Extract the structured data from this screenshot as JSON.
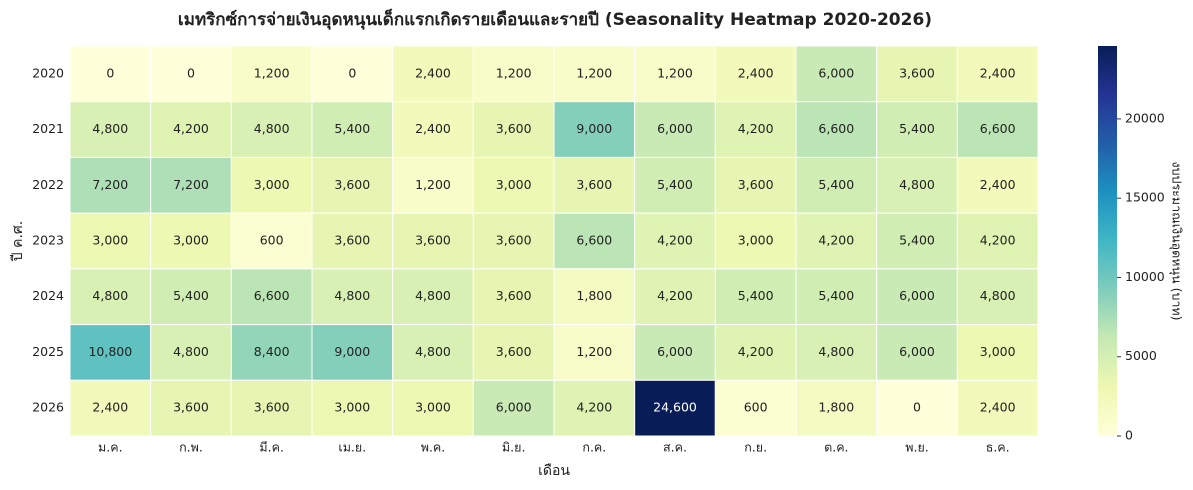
{
  "chart_data": {
    "type": "heatmap",
    "title": "เมทริกซ์การจ่ายเงินอุดหนุนเด็กแรกเกิดรายเดือนและรายปี (Seasonality Heatmap 2020-2026)",
    "x_label": "เดือน",
    "y_label": "ปี ค.ศ.",
    "x": [
      "ม.ค.",
      "ก.พ.",
      "มี.ค.",
      "เม.ย.",
      "พ.ค.",
      "มิ.ย.",
      "ก.ค.",
      "ส.ค.",
      "ก.ย.",
      "ต.ค.",
      "พ.ย.",
      "ธ.ค."
    ],
    "y": [
      "2020",
      "2021",
      "2022",
      "2023",
      "2024",
      "2025",
      "2026"
    ],
    "values": [
      [
        0,
        0,
        1200,
        0,
        2400,
        1200,
        1200,
        1200,
        2400,
        6000,
        3600,
        2400
      ],
      [
        4800,
        4200,
        4800,
        5400,
        2400,
        3600,
        9000,
        6000,
        4200,
        6600,
        5400,
        6600
      ],
      [
        7200,
        7200,
        3000,
        3600,
        1200,
        3000,
        3600,
        5400,
        3600,
        5400,
        4800,
        2400
      ],
      [
        3000,
        3000,
        600,
        3600,
        3600,
        3600,
        6600,
        4200,
        3000,
        4200,
        5400,
        4200
      ],
      [
        4800,
        5400,
        6600,
        4800,
        4800,
        3600,
        1800,
        4200,
        5400,
        5400,
        6000,
        4800
      ],
      [
        10800,
        4800,
        8400,
        9000,
        4800,
        3600,
        1200,
        6000,
        4200,
        4800,
        6000,
        3000
      ],
      [
        2400,
        3600,
        3600,
        3000,
        3000,
        6000,
        4200,
        24600,
        600,
        1800,
        0,
        2400
      ]
    ],
    "value_labels": [
      [
        "0",
        "0",
        "1,200",
        "0",
        "2,400",
        "1,200",
        "1,200",
        "1,200",
        "2,400",
        "6,000",
        "3,600",
        "2,400"
      ],
      [
        "4,800",
        "4,200",
        "4,800",
        "5,400",
        "2,400",
        "3,600",
        "9,000",
        "6,000",
        "4,200",
        "6,600",
        "5,400",
        "6,600"
      ],
      [
        "7,200",
        "7,200",
        "3,000",
        "3,600",
        "1,200",
        "3,000",
        "3,600",
        "5,400",
        "3,600",
        "5,400",
        "4,800",
        "2,400"
      ],
      [
        "3,000",
        "3,000",
        "600",
        "3,600",
        "3,600",
        "3,600",
        "6,600",
        "4,200",
        "3,000",
        "4,200",
        "5,400",
        "4,200"
      ],
      [
        "4,800",
        "5,400",
        "6,600",
        "4,800",
        "4,800",
        "3,600",
        "1,800",
        "4,200",
        "5,400",
        "5,400",
        "6,000",
        "4,800"
      ],
      [
        "10,800",
        "4,800",
        "8,400",
        "9,000",
        "4,800",
        "3,600",
        "1,200",
        "6,000",
        "4,200",
        "4,800",
        "6,000",
        "3,000"
      ],
      [
        "2,400",
        "3,600",
        "3,600",
        "3,000",
        "3,000",
        "6,000",
        "4,200",
        "24,600",
        "600",
        "1,800",
        "0",
        "2,400"
      ]
    ],
    "colorbar_label": "งบประมาณเงินอุดหนุน (บาท)",
    "zlim": [
      0,
      24600
    ],
    "zticks": [
      0,
      5000,
      10000,
      15000,
      20000
    ],
    "colormap": [
      "#ffffd9",
      "#edf8b1",
      "#c7e9b4",
      "#7fcdbb",
      "#41b6c4",
      "#1d91c0",
      "#225ea8",
      "#253494",
      "#081d58"
    ]
  }
}
